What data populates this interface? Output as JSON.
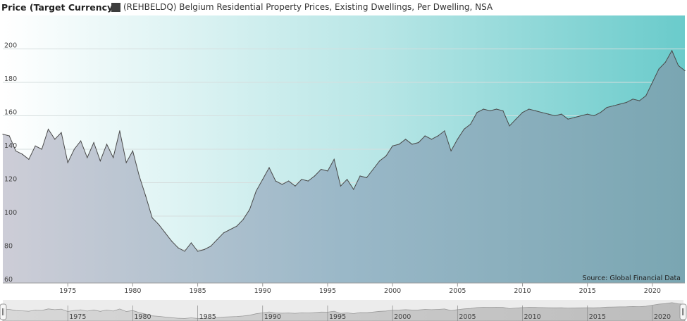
{
  "header": {
    "y_title": "Price (Target Currency)",
    "legend_label": "(REHBELDQ) Belgium Residential Property Prices, Existing Dwellings, Per Dwelling, NSA",
    "legend_color": "#3d3d3d"
  },
  "source": "Source: Global Financial Data",
  "chart_data": {
    "type": "area",
    "title": "",
    "ylabel": "Price (Target Currency)",
    "xlabel": "",
    "x_ticks": [
      1975,
      1980,
      1985,
      1990,
      1995,
      2000,
      2005,
      2010,
      2015,
      2020
    ],
    "y_ticks": [
      60,
      80,
      100,
      120,
      140,
      160,
      180,
      200
    ],
    "xlim": [
      1970,
      2022.5
    ],
    "ylim": [
      60,
      220
    ],
    "grid": true,
    "series": [
      {
        "name": "(REHBELDQ) Belgium Residential Property Prices, Existing Dwellings, Per Dwelling, NSA",
        "points": [
          [
            1970.0,
            149
          ],
          [
            1970.5,
            148
          ],
          [
            1971.0,
            139
          ],
          [
            1971.5,
            137
          ],
          [
            1972.0,
            134
          ],
          [
            1972.5,
            142
          ],
          [
            1973.0,
            140
          ],
          [
            1973.5,
            152
          ],
          [
            1974.0,
            146
          ],
          [
            1974.5,
            150
          ],
          [
            1975.0,
            132
          ],
          [
            1975.5,
            140
          ],
          [
            1976.0,
            145
          ],
          [
            1976.5,
            135
          ],
          [
            1977.0,
            144
          ],
          [
            1977.5,
            133
          ],
          [
            1978.0,
            143
          ],
          [
            1978.5,
            135
          ],
          [
            1979.0,
            151
          ],
          [
            1979.5,
            132
          ],
          [
            1980.0,
            139
          ],
          [
            1980.5,
            124
          ],
          [
            1981.0,
            112
          ],
          [
            1981.5,
            99
          ],
          [
            1982.0,
            95
          ],
          [
            1982.5,
            90
          ],
          [
            1983.0,
            85
          ],
          [
            1983.5,
            81
          ],
          [
            1984.0,
            79
          ],
          [
            1984.5,
            84
          ],
          [
            1985.0,
            79
          ],
          [
            1985.5,
            80
          ],
          [
            1986.0,
            82
          ],
          [
            1986.5,
            86
          ],
          [
            1987.0,
            90
          ],
          [
            1987.5,
            92
          ],
          [
            1988.0,
            94
          ],
          [
            1988.5,
            98
          ],
          [
            1989.0,
            104
          ],
          [
            1989.5,
            115
          ],
          [
            1990.0,
            122
          ],
          [
            1990.5,
            129
          ],
          [
            1991.0,
            121
          ],
          [
            1991.5,
            119
          ],
          [
            1992.0,
            121
          ],
          [
            1992.5,
            118
          ],
          [
            1993.0,
            122
          ],
          [
            1993.5,
            121
          ],
          [
            1994.0,
            124
          ],
          [
            1994.5,
            128
          ],
          [
            1995.0,
            127
          ],
          [
            1995.5,
            134
          ],
          [
            1996.0,
            118
          ],
          [
            1996.5,
            122
          ],
          [
            1997.0,
            116
          ],
          [
            1997.5,
            124
          ],
          [
            1998.0,
            123
          ],
          [
            1998.5,
            128
          ],
          [
            1999.0,
            133
          ],
          [
            1999.5,
            136
          ],
          [
            2000.0,
            142
          ],
          [
            2000.5,
            143
          ],
          [
            2001.0,
            146
          ],
          [
            2001.5,
            143
          ],
          [
            2002.0,
            144
          ],
          [
            2002.5,
            148
          ],
          [
            2003.0,
            146
          ],
          [
            2003.5,
            148
          ],
          [
            2004.0,
            151
          ],
          [
            2004.5,
            139
          ],
          [
            2005.0,
            146
          ],
          [
            2005.5,
            152
          ],
          [
            2006.0,
            155
          ],
          [
            2006.5,
            162
          ],
          [
            2007.0,
            164
          ],
          [
            2007.5,
            163
          ],
          [
            2008.0,
            164
          ],
          [
            2008.5,
            163
          ],
          [
            2009.0,
            154
          ],
          [
            2009.5,
            158
          ],
          [
            2010.0,
            162
          ],
          [
            2010.5,
            164
          ],
          [
            2011.0,
            163
          ],
          [
            2011.5,
            162
          ],
          [
            2012.0,
            161
          ],
          [
            2012.5,
            160
          ],
          [
            2013.0,
            161
          ],
          [
            2013.5,
            158
          ],
          [
            2014.0,
            159
          ],
          [
            2014.5,
            160
          ],
          [
            2015.0,
            161
          ],
          [
            2015.5,
            160
          ],
          [
            2016.0,
            162
          ],
          [
            2016.5,
            165
          ],
          [
            2017.0,
            166
          ],
          [
            2017.5,
            167
          ],
          [
            2018.0,
            168
          ],
          [
            2018.5,
            170
          ],
          [
            2019.0,
            169
          ],
          [
            2019.5,
            172
          ],
          [
            2020.0,
            180
          ],
          [
            2020.5,
            188
          ],
          [
            2021.0,
            192
          ],
          [
            2021.5,
            199
          ],
          [
            2022.0,
            190
          ],
          [
            2022.5,
            187
          ]
        ]
      }
    ]
  },
  "navigator": {
    "labels": [
      "1975",
      "1980",
      "1985",
      "1990",
      "1995",
      "2000",
      "2005",
      "2010",
      "2015",
      "2020"
    ]
  }
}
